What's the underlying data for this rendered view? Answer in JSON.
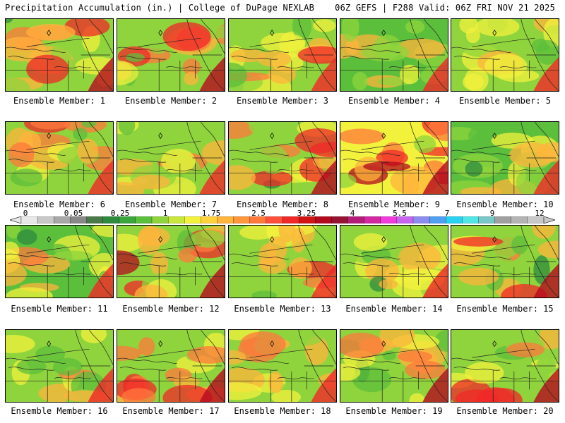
{
  "header": {
    "left_title": "Precipitation Accumulation (in.) | College of DuPage NEXLAB",
    "right_title": "06Z GEFS | F288 Valid: 06Z FRI NOV 21 2025"
  },
  "caption_prefix": "Ensemble Member:",
  "members": [
    {
      "label": "Ensemble Member: 1",
      "wetness": 0.7
    },
    {
      "label": "Ensemble Member: 2",
      "wetness": 0.72
    },
    {
      "label": "Ensemble Member: 3",
      "wetness": 0.55
    },
    {
      "label": "Ensemble Member: 4",
      "wetness": 0.45
    },
    {
      "label": "Ensemble Member: 5",
      "wetness": 0.62
    },
    {
      "label": "Ensemble Member: 6",
      "wetness": 0.58
    },
    {
      "label": "Ensemble Member: 7",
      "wetness": 0.5
    },
    {
      "label": "Ensemble Member: 8",
      "wetness": 0.68
    },
    {
      "label": "Ensemble Member: 9",
      "wetness": 0.85
    },
    {
      "label": "Ensemble Member: 10",
      "wetness": 0.48
    },
    {
      "label": "Ensemble Member: 11",
      "wetness": 0.4
    },
    {
      "label": "Ensemble Member: 12",
      "wetness": 0.75
    },
    {
      "label": "Ensemble Member: 13",
      "wetness": 0.6
    },
    {
      "label": "Ensemble Member: 14",
      "wetness": 0.5
    },
    {
      "label": "Ensemble Member: 15",
      "wetness": 0.63
    },
    {
      "label": "Ensemble Member: 16",
      "wetness": 0.58
    },
    {
      "label": "Ensemble Member: 17",
      "wetness": 0.78
    },
    {
      "label": "Ensemble Member: 18",
      "wetness": 0.55
    },
    {
      "label": "Ensemble Member: 19",
      "wetness": 0.7
    },
    {
      "label": "Ensemble Member: 20",
      "wetness": 0.66
    }
  ],
  "colorbar": {
    "tick_labels": [
      "0",
      "0.05",
      "0.25",
      "1",
      "1.75",
      "2.5",
      "3.25",
      "4",
      "5.5",
      "7",
      "9",
      "12"
    ],
    "colors": [
      "#e8e8e8",
      "#c8c8c8",
      "#a8a8a8",
      "#888888",
      "#4a7a4a",
      "#2e8b3e",
      "#3aa63c",
      "#5cbf3c",
      "#8fd43c",
      "#c8e63c",
      "#f2f23c",
      "#ffd23c",
      "#ffb43c",
      "#ff963c",
      "#ff783c",
      "#ff503c",
      "#f02828",
      "#d21414",
      "#b40a1e",
      "#961432",
      "#b41e78",
      "#d228a0",
      "#f03cdc",
      "#c864f0",
      "#8c8cf0",
      "#50a0f0",
      "#28d2f0",
      "#50e6e6",
      "#78c8c8",
      "#a0a0a0",
      "#b4b4b4",
      "#c8c8c8"
    ]
  },
  "map_palette": {
    "dark_green": "#2e8b3e",
    "green": "#5cbf3c",
    "light_green": "#8fd43c",
    "yellow": "#f2f23c",
    "orange": "#ffb43c",
    "dark_orange": "#ff783c",
    "red": "#f02828",
    "dark_red": "#b40a1e",
    "magenta": "#d228a0",
    "lavender": "#c864f0"
  }
}
